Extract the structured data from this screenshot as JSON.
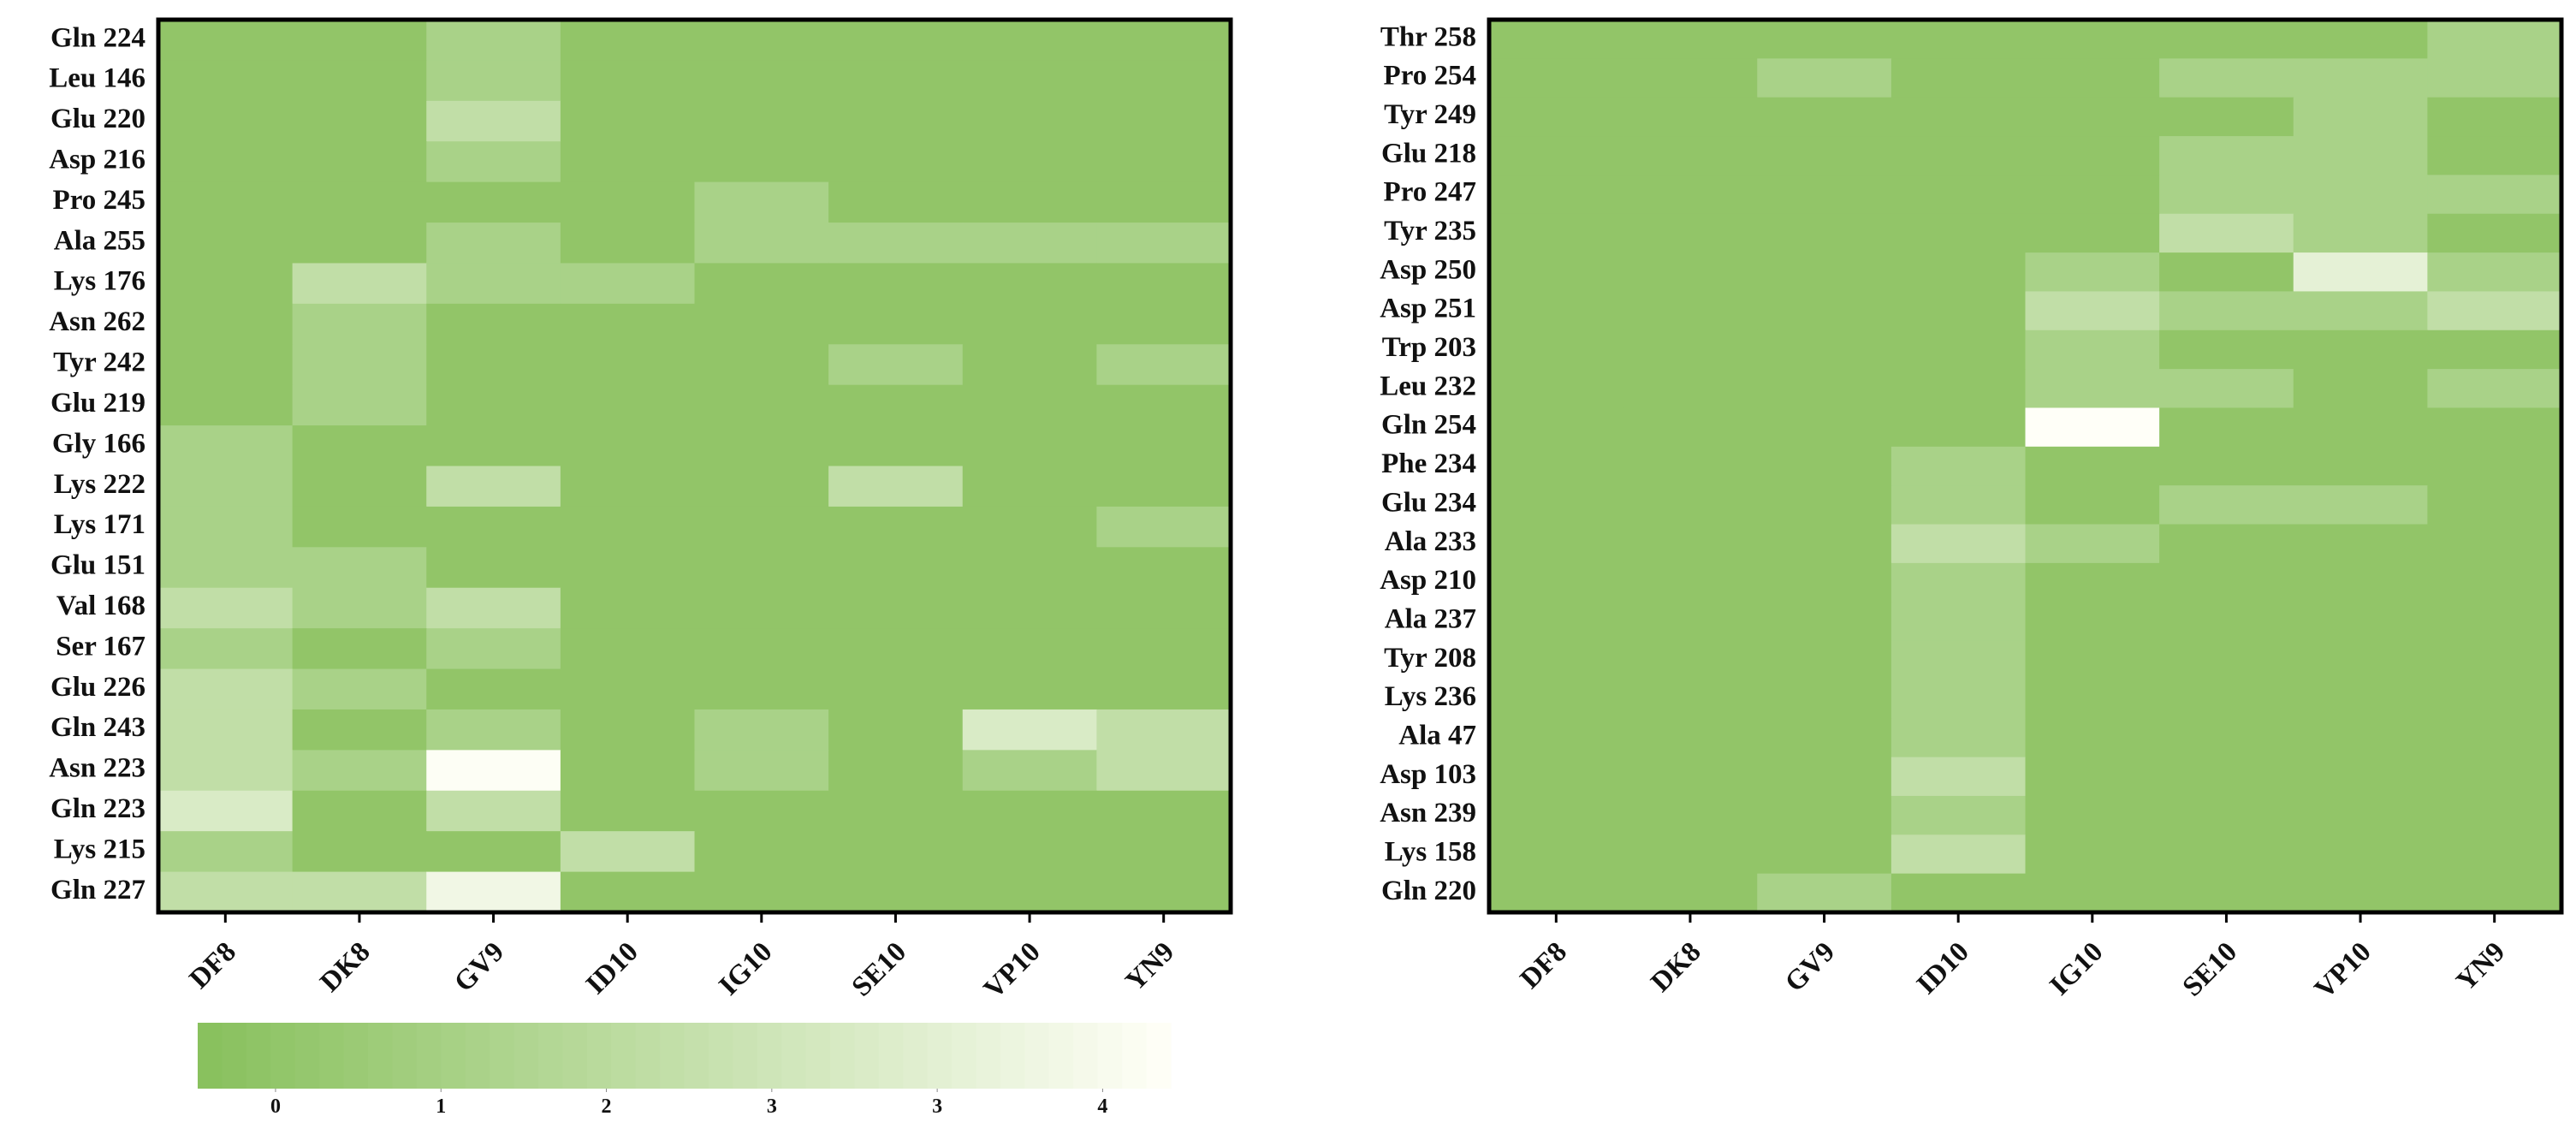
{
  "chart_data": [
    {
      "type": "heatmap",
      "rows": [
        "Gln 224",
        "Leu 146",
        "Glu 220",
        "Asp 216",
        "Pro 245",
        "Ala 255",
        "Lys 176",
        "Asn 262",
        "Tyr 242",
        "Glu 219",
        "Gly 166",
        "Lys 222",
        "Lys 171",
        "Glu 151",
        "Val 168",
        "Ser 167",
        "Glu 226",
        "Gln 243",
        "Asn 223",
        "Gln 223",
        "Lys 215",
        "Gln 227"
      ],
      "columns": [
        "DF8",
        "DK8",
        "GV9",
        "ID10",
        "IG10",
        "SE10",
        "VP10",
        "YN9"
      ],
      "values": [
        [
          0,
          0,
          1,
          0,
          0,
          0,
          0,
          0
        ],
        [
          0,
          0,
          1,
          0,
          0,
          0,
          0,
          0
        ],
        [
          0,
          0,
          2,
          0,
          0,
          0,
          0,
          0
        ],
        [
          0,
          0,
          1,
          0,
          0,
          0,
          0,
          0
        ],
        [
          0,
          0,
          0,
          0,
          1,
          0,
          0,
          0
        ],
        [
          0,
          0,
          1,
          0,
          1,
          1,
          1,
          1
        ],
        [
          0,
          2,
          1,
          1,
          0,
          0,
          0,
          0
        ],
        [
          0,
          1,
          0,
          0,
          0,
          0,
          0,
          0
        ],
        [
          0,
          1,
          0,
          0,
          0,
          1,
          0,
          1
        ],
        [
          0,
          1,
          0,
          0,
          0,
          0,
          0,
          0
        ],
        [
          1,
          0,
          0,
          0,
          0,
          0,
          0,
          0
        ],
        [
          1,
          0,
          2,
          0,
          0,
          2,
          0,
          0
        ],
        [
          1,
          0,
          0,
          0,
          0,
          0,
          0,
          1
        ],
        [
          1,
          1,
          0,
          0,
          0,
          0,
          0,
          0
        ],
        [
          2,
          1,
          2,
          0,
          0,
          0,
          0,
          0
        ],
        [
          1,
          0,
          1,
          0,
          0,
          0,
          0,
          0
        ],
        [
          2,
          1,
          0,
          0,
          0,
          0,
          0,
          0
        ],
        [
          2,
          0,
          1,
          0,
          1,
          0,
          3,
          2
        ],
        [
          2,
          1,
          4.5,
          0,
          1,
          0,
          1,
          2
        ],
        [
          3,
          0,
          2,
          0,
          0,
          0,
          0,
          0
        ],
        [
          1,
          0,
          0,
          2,
          0,
          0,
          0,
          0
        ],
        [
          2,
          2,
          4,
          0,
          0,
          0,
          0,
          0
        ]
      ]
    },
    {
      "type": "heatmap",
      "rows": [
        "Thr 258",
        "Pro 254",
        "Tyr 249",
        "Glu 218",
        "Pro 247",
        "Tyr 235",
        "Asp 250",
        "Asp 251",
        "Trp 203",
        "Leu 232",
        "Gln 254",
        "Phe 234",
        "Glu 234",
        "Ala 233",
        "Asp 210",
        "Ala 237",
        "Tyr 208",
        "Lys 236",
        "Ala 47",
        "Asp 103",
        "Asn 239",
        "Lys 158",
        "Gln 220"
      ],
      "columns": [
        "DF8",
        "DK8",
        "GV9",
        "ID10",
        "IG10",
        "SE10",
        "VP10",
        "YN9"
      ],
      "values": [
        [
          0,
          0,
          0,
          0,
          0,
          0,
          0,
          1
        ],
        [
          0,
          0,
          1,
          0,
          0,
          1,
          1,
          1
        ],
        [
          0,
          0,
          0,
          0,
          0,
          0,
          1,
          0
        ],
        [
          0,
          0,
          0,
          0,
          0,
          1,
          1,
          0
        ],
        [
          0,
          0,
          0,
          0,
          0,
          1,
          1,
          1
        ],
        [
          0,
          0,
          0,
          0,
          0,
          2,
          1,
          0
        ],
        [
          0,
          0,
          0,
          0,
          1,
          0,
          3.5,
          1
        ],
        [
          0,
          0,
          0,
          0,
          2,
          1,
          1,
          2
        ],
        [
          0,
          0,
          0,
          0,
          1,
          0,
          0,
          0
        ],
        [
          0,
          0,
          0,
          0,
          1,
          1,
          0,
          1
        ],
        [
          0,
          0,
          0,
          0,
          4.6,
          0,
          0,
          0
        ],
        [
          0,
          0,
          0,
          1,
          0,
          0,
          0,
          0
        ],
        [
          0,
          0,
          0,
          1,
          0,
          1,
          1,
          0
        ],
        [
          0,
          0,
          0,
          2,
          1,
          0,
          0,
          0
        ],
        [
          0,
          0,
          0,
          1,
          0,
          0,
          0,
          0
        ],
        [
          0,
          0,
          0,
          1,
          0,
          0,
          0,
          0
        ],
        [
          0,
          0,
          0,
          1,
          0,
          0,
          0,
          0
        ],
        [
          0,
          0,
          0,
          1,
          0,
          0,
          0,
          0
        ],
        [
          0,
          0,
          0,
          1,
          0,
          0,
          0,
          0
        ],
        [
          0,
          0,
          0,
          2,
          0,
          0,
          0,
          0
        ],
        [
          0,
          0,
          0,
          1,
          0,
          0,
          0,
          0
        ],
        [
          0,
          0,
          0,
          2,
          0,
          0,
          0,
          0
        ],
        [
          0,
          0,
          1,
          0,
          0,
          0,
          0,
          0
        ]
      ]
    }
  ],
  "colorbar": {
    "zlim": [
      -0.4,
      4.6
    ],
    "zticks": [
      {
        "value": 0,
        "label": "0"
      },
      {
        "value": 0.85,
        "label": "1"
      },
      {
        "value": 1.7,
        "label": "2"
      },
      {
        "value": 2.55,
        "label": "3"
      },
      {
        "value": 3.4,
        "label": "3"
      },
      {
        "value": 4.25,
        "label": "4"
      }
    ],
    "colormap": [
      "#88c05c",
      "#fffff8"
    ]
  }
}
